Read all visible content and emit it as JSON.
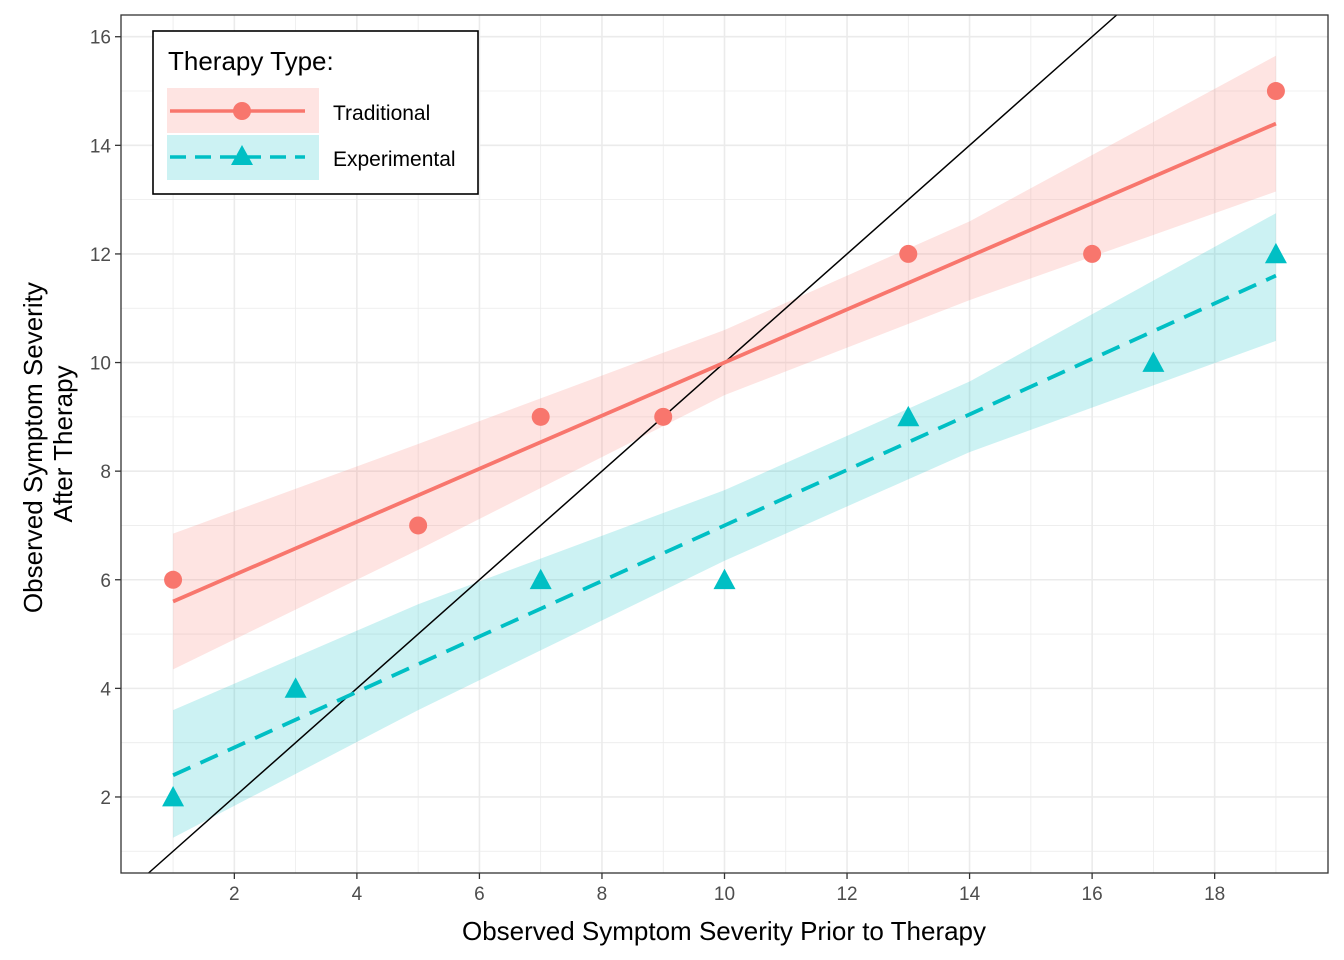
{
  "chart_data": {
    "type": "scatter",
    "xlabel": "Observed Symptom Severity Prior to Therapy",
    "ylabel": [
      "Observed Symptom Severity",
      "After Therapy"
    ],
    "xlim": [
      0.15,
      19.85
    ],
    "ylim": [
      0.6,
      16.4
    ],
    "x_ticks": [
      2,
      4,
      6,
      8,
      10,
      12,
      14,
      16,
      18
    ],
    "y_ticks": [
      2,
      4,
      6,
      8,
      10,
      12,
      14,
      16
    ],
    "grid": true,
    "reference_line": {
      "type": "identity",
      "slope": 1,
      "intercept": 0,
      "color": "#000000"
    },
    "legend": {
      "title": "Therapy Type:",
      "placement": "top-left",
      "entries": [
        "Traditional",
        "Experimental"
      ]
    },
    "series": [
      {
        "name": "Traditional",
        "color": "#F8766D",
        "marker": "circle",
        "line": "solid",
        "points": [
          {
            "x": 1,
            "y": 6
          },
          {
            "x": 5,
            "y": 7
          },
          {
            "x": 7,
            "y": 9
          },
          {
            "x": 9,
            "y": 9
          },
          {
            "x": 13,
            "y": 12
          },
          {
            "x": 16,
            "y": 12
          },
          {
            "x": 19,
            "y": 15
          }
        ],
        "fit": {
          "x": [
            1,
            19
          ],
          "y": [
            5.6,
            14.4
          ]
        },
        "band": {
          "x": [
            1,
            5,
            10,
            14,
            19
          ],
          "lower": [
            4.35,
            6.55,
            9.4,
            11.15,
            13.15
          ],
          "upper": [
            6.85,
            8.5,
            10.6,
            12.6,
            15.65
          ]
        }
      },
      {
        "name": "Experimental",
        "color": "#00BFC4",
        "marker": "triangle",
        "line": "dashed",
        "points": [
          {
            "x": 1,
            "y": 2
          },
          {
            "x": 3,
            "y": 4
          },
          {
            "x": 7,
            "y": 6
          },
          {
            "x": 10,
            "y": 6
          },
          {
            "x": 13,
            "y": 9
          },
          {
            "x": 17,
            "y": 10
          },
          {
            "x": 19,
            "y": 12
          }
        ],
        "fit": {
          "x": [
            1,
            19
          ],
          "y": [
            2.4,
            11.6
          ]
        },
        "band": {
          "x": [
            1,
            5,
            10,
            14,
            19
          ],
          "lower": [
            1.25,
            3.6,
            6.35,
            8.35,
            10.4
          ],
          "upper": [
            3.6,
            5.55,
            7.65,
            9.65,
            12.75
          ]
        }
      }
    ]
  }
}
